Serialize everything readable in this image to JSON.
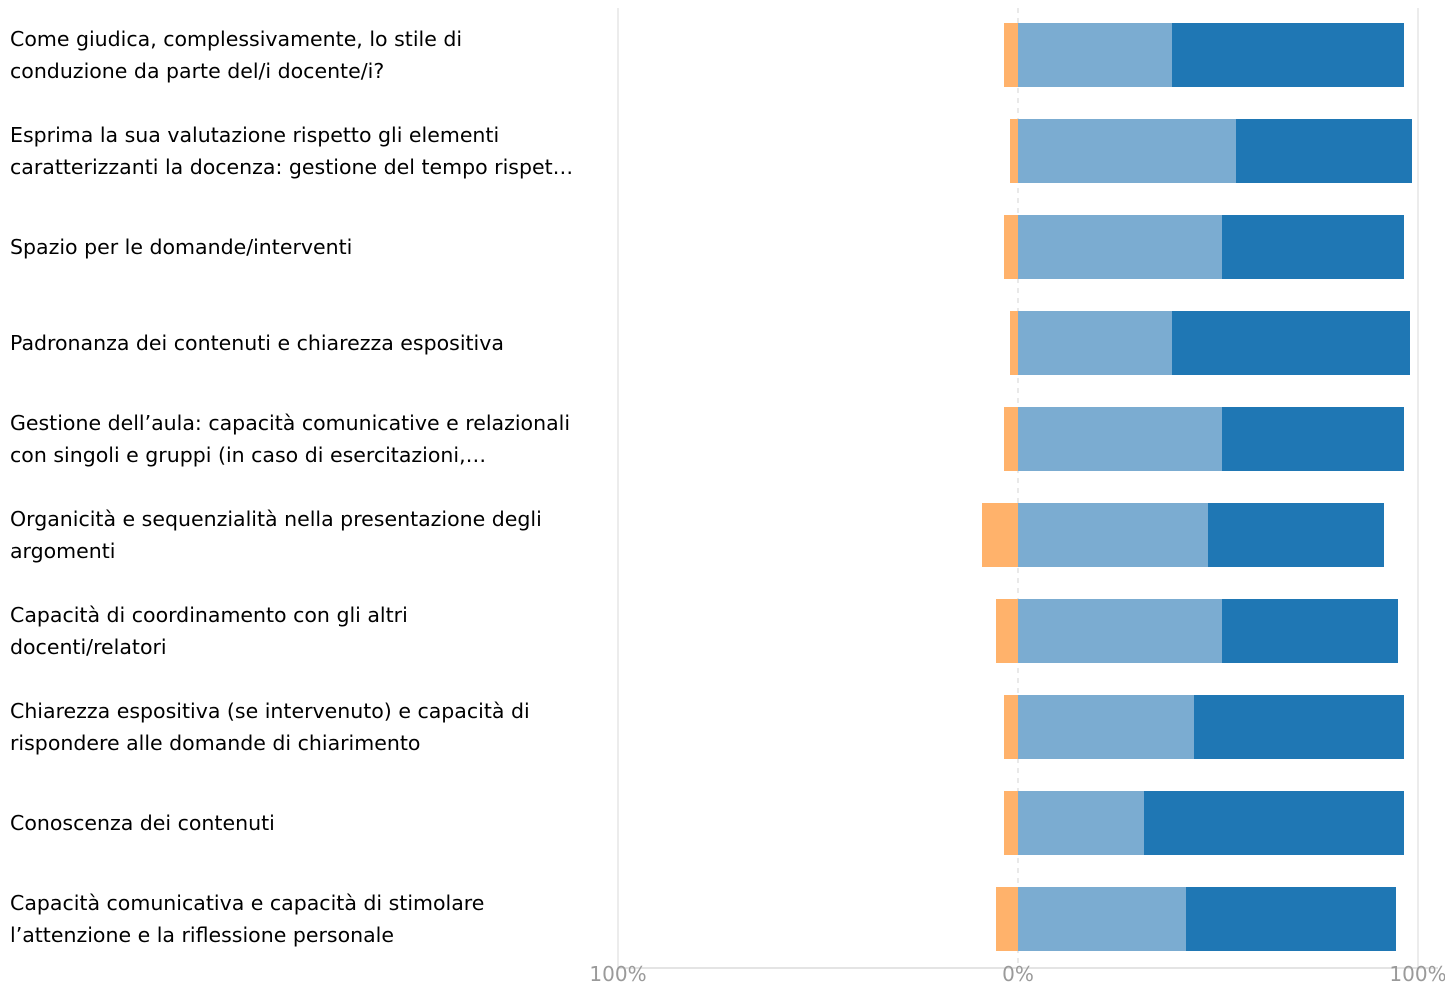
{
  "chart_data": {
    "type": "bar",
    "orientation": "horizontal",
    "stacked": "diverging",
    "categories": [
      "Come giudica, complessivamente, lo stile di\nconduzione da parte del/i docente/i?",
      "Esprima la sua valutazione rispetto gli elementi\ncaratterizzanti la docenza: gestione del tempo rispet…",
      "Spazio per le domande/interventi",
      "Padronanza dei contenuti e chiarezza espositiva",
      "Gestione dell’aula: capacità comunicative e relazionali\ncon singoli e gruppi (in caso di esercitazioni,…",
      "Organicità e sequenzialità nella presentazione degli\nargomenti",
      "Capacità di coordinamento con gli altri\ndocenti/relatori",
      "Chiarezza espositiva (se intervenuto) e capacità di\nrispondere alle domande di chiarimento",
      "Conoscenza dei contenuti",
      "Capacità comunicativa e capacità di stimolare\nl’attenzione e la riflessione personale"
    ],
    "series": [
      {
        "color": "#ffb26b",
        "direction": "negative",
        "values": [
          3.5,
          2.0,
          3.5,
          2.0,
          3.5,
          9.0,
          5.5,
          3.5,
          3.5,
          5.5
        ]
      },
      {
        "color": "#7bacd1",
        "direction": "positive",
        "values": [
          38.5,
          54.5,
          51.0,
          38.5,
          51.0,
          47.5,
          51.0,
          44.0,
          31.5,
          42.0
        ]
      },
      {
        "color": "#1f77b4",
        "direction": "positive",
        "values": [
          58.0,
          44.0,
          45.5,
          59.5,
          45.5,
          44.0,
          44.0,
          52.5,
          65.0,
          52.5
        ]
      }
    ],
    "xlim": [
      -100,
      100
    ],
    "xticks": [
      -100,
      0,
      100
    ],
    "xtick_labels": [
      "100%",
      "0%",
      "100%"
    ],
    "zero_line": "dashed",
    "gridlines": true,
    "legend": "none"
  }
}
